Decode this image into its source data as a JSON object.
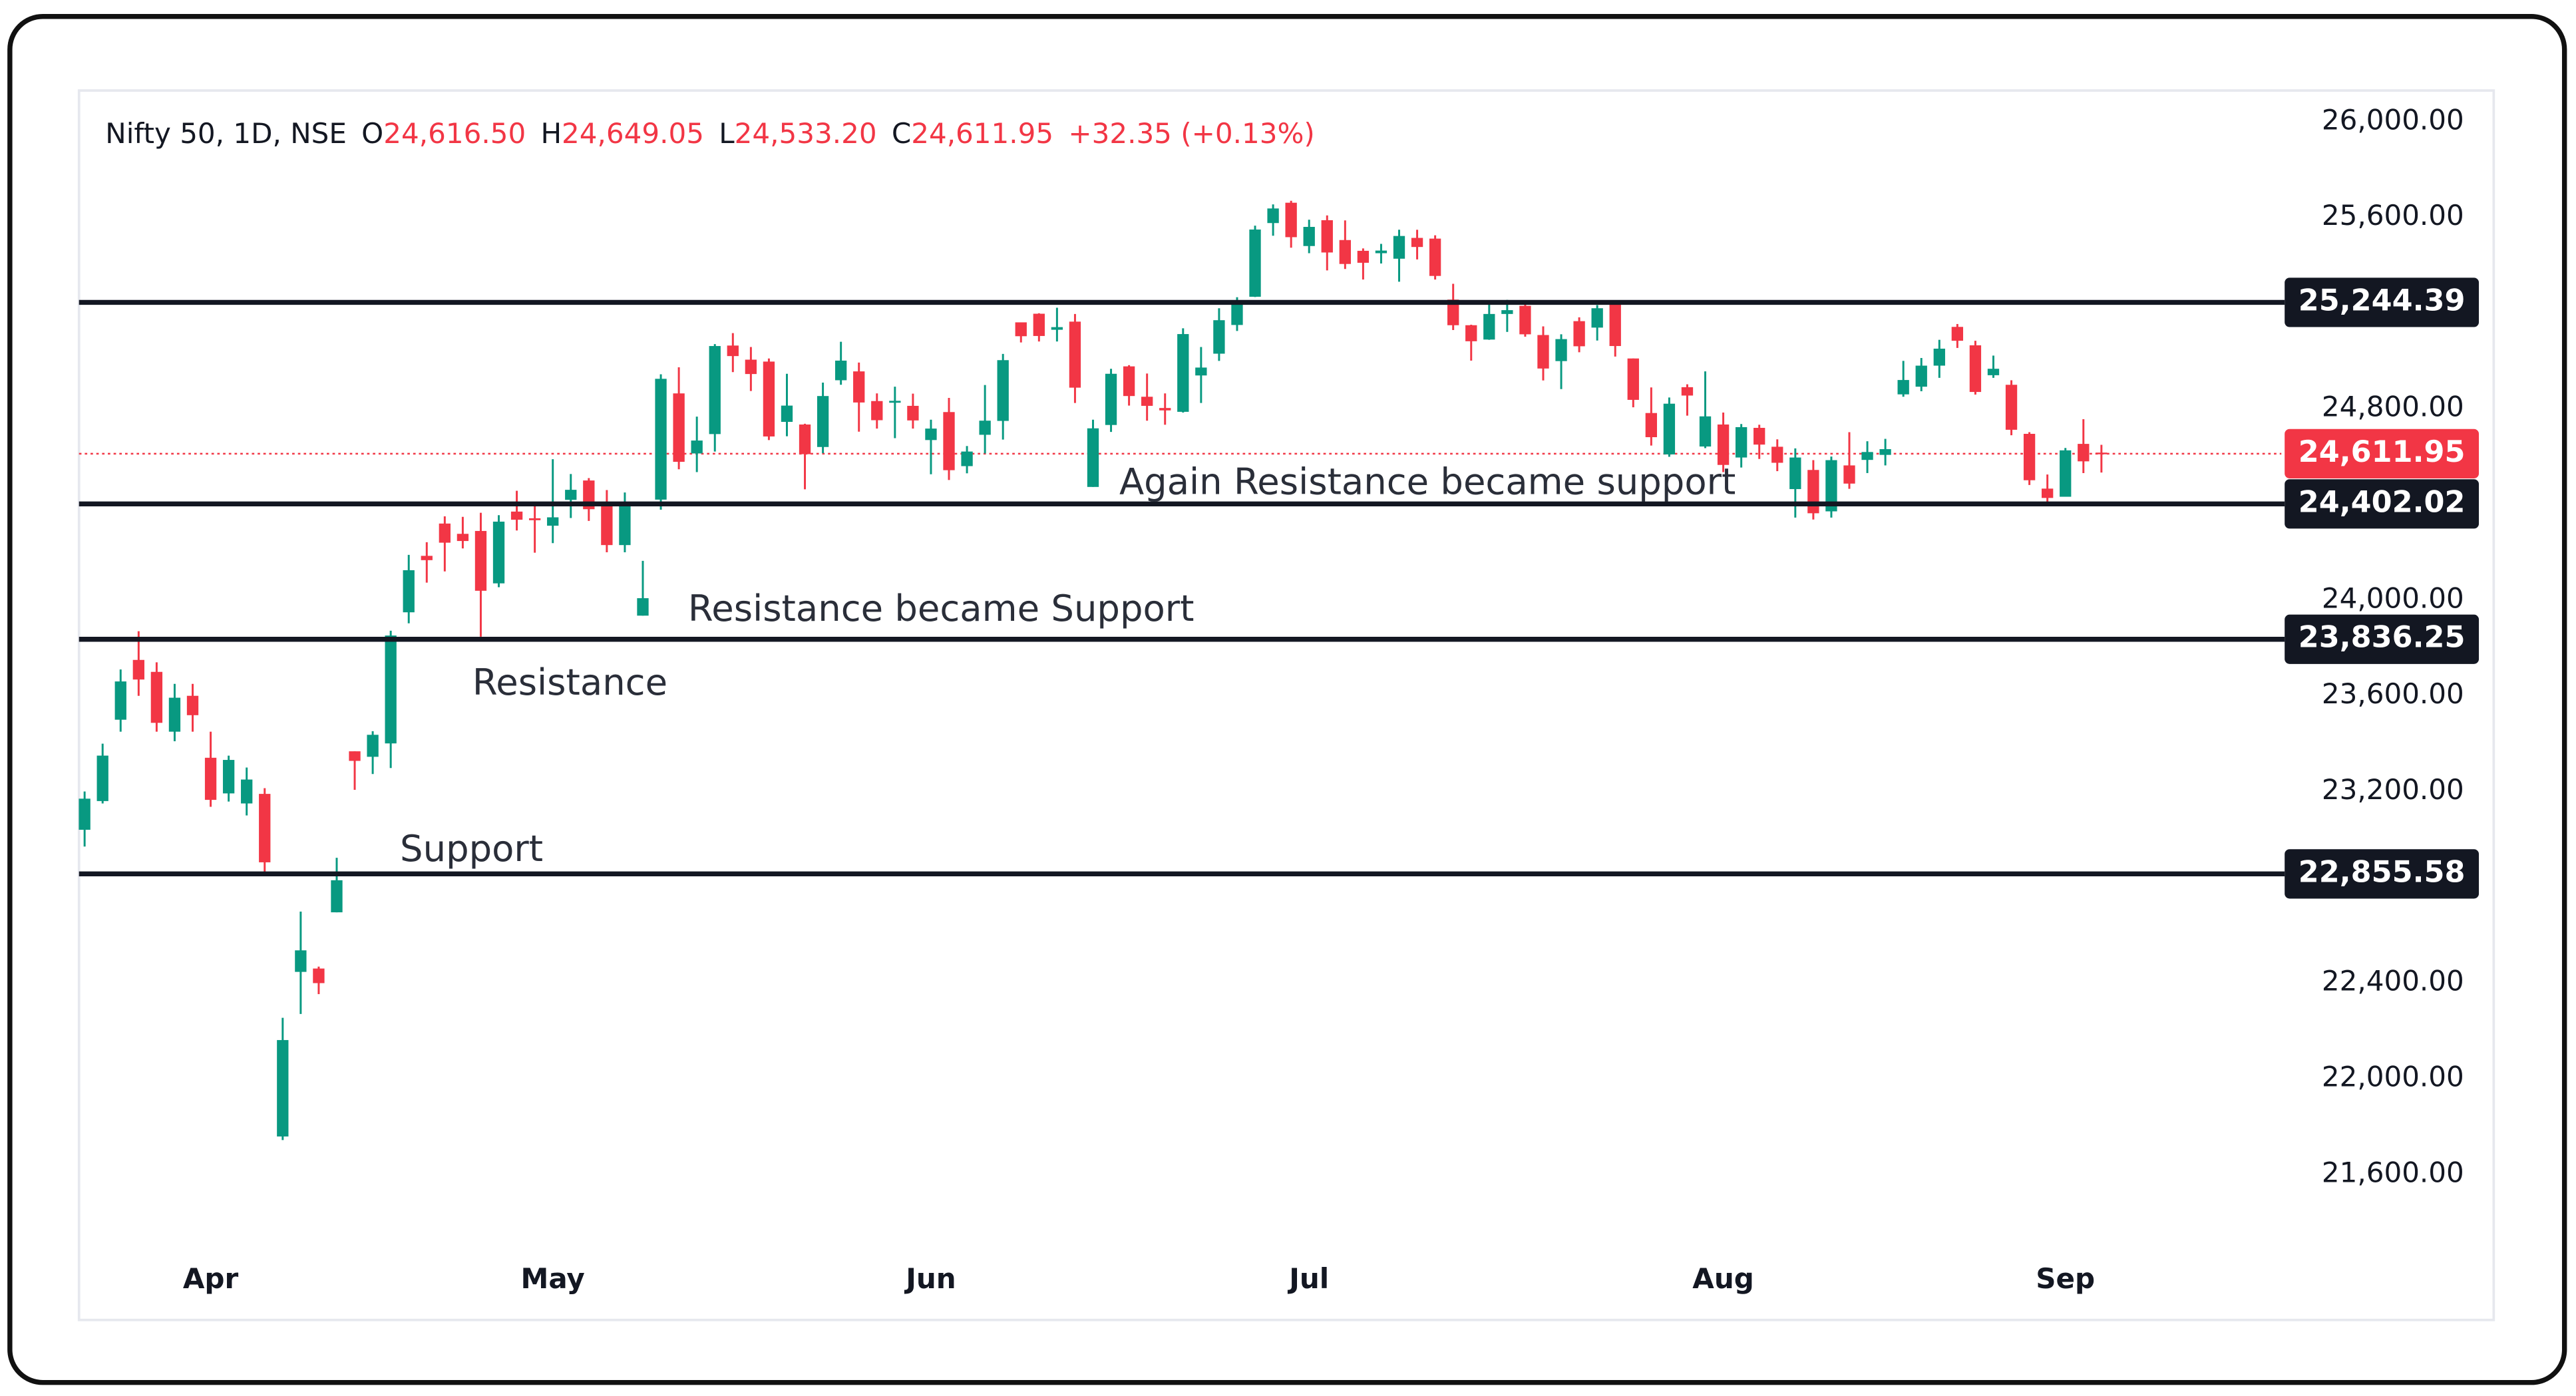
{
  "chart_data": {
    "type": "candlestick",
    "header": {
      "symbol": "Nifty 50, 1D, NSE",
      "items": [
        {
          "key": "O",
          "value": 24616.5,
          "label": "24,616.50"
        },
        {
          "key": "H",
          "value": 24649.05,
          "label": "24,649.05"
        },
        {
          "key": "L",
          "value": 24533.2,
          "label": "24,533.20"
        },
        {
          "key": "C",
          "value": 24611.95,
          "label": "24,611.95"
        }
      ],
      "change": "+32.35 (+0.13%)"
    },
    "categories": [
      null,
      null,
      null,
      null,
      null,
      null,
      null,
      "Apr",
      null,
      null,
      null,
      null,
      null,
      null,
      null,
      null,
      null,
      null,
      null,
      null,
      null,
      null,
      null,
      null,
      null,
      null,
      "May",
      null,
      null,
      null,
      null,
      null,
      null,
      null,
      null,
      null,
      null,
      null,
      null,
      null,
      null,
      null,
      null,
      null,
      null,
      null,
      null,
      "Jun",
      null,
      null,
      null,
      null,
      null,
      null,
      null,
      null,
      null,
      null,
      null,
      null,
      null,
      null,
      null,
      null,
      null,
      null,
      null,
      null,
      "Jul",
      null,
      null,
      null,
      null,
      null,
      null,
      null,
      null,
      null,
      null,
      null,
      null,
      null,
      null,
      null,
      null,
      null,
      null,
      null,
      null,
      null,
      null,
      "Aug",
      null,
      null,
      null,
      null,
      null,
      null,
      null,
      null,
      null,
      null,
      null,
      null,
      null,
      null,
      null,
      null,
      null,
      null,
      "Sep",
      null,
      null
    ],
    "open": [
      23040,
      23160,
      23500,
      23750,
      23700,
      23450,
      23600,
      23341,
      23192,
      23150,
      23190,
      21758,
      22446,
      22460,
      22695,
      23368,
      23345,
      23401,
      23949,
      24185,
      24320,
      24277,
      24289,
      24070,
      24370,
      24342,
      24311,
      24419,
      24500,
      24400,
      24230,
      23935,
      24420,
      24864,
      24613,
      24694,
      25064,
      25005,
      24997,
      24745,
      24734,
      24640,
      24919,
      24956,
      24832,
      24825,
      24812,
      24669,
      24786,
      24560,
      24691,
      24749,
      25161,
      25197,
      25130,
      25164,
      24473,
      24732,
      24977,
      24850,
      24803,
      24787,
      24939,
      25030,
      25150,
      25268,
      25576,
      25661,
      25480,
      25588,
      25505,
      25460,
      25450,
      25427,
      25514,
      25511,
      25256,
      25149,
      25089,
      25196,
      25230,
      25108,
      24999,
      25166,
      25139,
      25243,
      25010,
      24782,
      24609,
      24890,
      24642,
      24734,
      24596,
      24720,
      24641,
      24464,
      24544,
      24371,
      24563,
      24586,
      24607,
      24860,
      24892,
      24980,
      25142,
      25065,
      24940,
      24900,
      24695,
      24466,
      24432,
      24653,
      24616.5
    ],
    "high": [
      23200,
      23400,
      23710,
      23870,
      23740,
      23650,
      23650,
      23450,
      23350,
      23300,
      23214,
      22254,
      22698,
      22468,
      22923,
      23368,
      23452,
      23872,
      24189,
      24242,
      24350,
      24348,
      24365,
      24355,
      24457,
      24396,
      24589,
      24527,
      24510,
      24460,
      24450,
      24164,
      24944,
      24973,
      24767,
      25070,
      25116,
      25058,
      25010,
      24946,
      24737,
      24909,
      25080,
      24993,
      24864,
      24892,
      24863,
      24754,
      24845,
      24644,
      24899,
      25029,
      25160,
      25199,
      25222,
      25196,
      24754,
      24967,
      24982,
      24947,
      24864,
      25136,
      25058,
      25220,
      25266,
      25565,
      25654,
      25669,
      25590,
      25608,
      25587,
      25470,
      25489,
      25548,
      25548,
      25525,
      25322,
      25151,
      25245,
      25255,
      25238,
      25144,
      25111,
      25182,
      25233,
      25246,
      25010,
      24889,
      24847,
      24902,
      24956,
      24784,
      24736,
      24733,
      24672,
      24634,
      24585,
      24600,
      24702,
      24664,
      24674,
      25000,
      25012,
      25088,
      25154,
      25084,
      25022,
      24919,
      24702,
      24525,
      24636,
      24756,
      24649.05
    ],
    "low": [
      22970,
      23150,
      23450,
      23600,
      23450,
      23410,
      23450,
      23136,
      23158,
      23100,
      22857,
      21743,
      22270,
      22353,
      22695,
      23207,
      23273,
      23298,
      23903,
      24073,
      24120,
      24216,
      23847,
      24054,
      24291,
      24198,
      24238,
      24343,
      24331,
      24200,
      24200,
      23935,
      24378,
      24547,
      24535,
      24621,
      24953,
      24874,
      24669,
      24685,
      24463,
      24614,
      24900,
      24704,
      24717,
      24677,
      24717,
      24526,
      24502,
      24530,
      24613,
      24671,
      25077,
      25081,
      25081,
      24824,
      24473,
      24703,
      24813,
      24750,
      24733,
      24784,
      24824,
      25000,
      25125,
      25267,
      25523,
      25473,
      25450,
      25378,
      25384,
      25340,
      25407,
      25331,
      25424,
      25340,
      25129,
      25001,
      25088,
      25121,
      25101,
      24918,
      24882,
      25036,
      25085,
      25018,
      24806,
      24646,
      24599,
      24771,
      24635,
      24535,
      24554,
      24590,
      24539,
      24345,
      24337,
      24345,
      24465,
      24531,
      24563,
      24850,
      24873,
      24929,
      25054,
      24859,
      24929,
      24689,
      24481,
      24404,
      24432,
      24531,
      24533.2
    ],
    "close": [
      23170,
      23350,
      23660,
      23668,
      23487,
      23592,
      23519,
      23165,
      23332,
      23250,
      22904,
      22161,
      22536,
      22399,
      22829,
      23328,
      23437,
      23852,
      24125,
      24167,
      24240,
      24247,
      24039,
      24328,
      24336,
      24334,
      24346,
      24461,
      24380,
      24230,
      24410,
      24008,
      24925,
      24578,
      24667,
      25062,
      25020,
      24945,
      24684,
      24813,
      24610,
      24853,
      25001,
      24826,
      24752,
      24833,
      24751,
      24717,
      24543,
      24621,
      24750,
      25003,
      25103,
      25104,
      25141,
      24888,
      24718,
      24946,
      24853,
      24812,
      24793,
      25112,
      24972,
      25170,
      25245,
      25549,
      25637,
      25517,
      25560,
      25453,
      25405,
      25410,
      25461,
      25522,
      25476,
      25355,
      25149,
      25082,
      25196,
      25212,
      25111,
      24968,
      25091,
      25061,
      25220,
      25062,
      24837,
      24681,
      24821,
      24855,
      24768,
      24565,
      24723,
      24650,
      24574,
      24596,
      24363,
      24585,
      24487,
      24619,
      24631,
      24920,
      24980,
      25051,
      25084,
      24870,
      24967,
      24712,
      24501,
      24427,
      24626,
      24580,
      24611.95
    ],
    "up_color": "#089981",
    "down_color": "#f23645",
    "ylim": [
      21280,
      26130
    ],
    "yticks": [
      {
        "value": 21600,
        "label": "21,600.00"
      },
      {
        "value": 22000,
        "label": "22,000.00"
      },
      {
        "value": 22400,
        "label": "22,400.00"
      },
      {
        "value": 23200,
        "label": "23,200.00"
      },
      {
        "value": 23600,
        "label": "23,600.00"
      },
      {
        "value": 24000,
        "label": "24,000.00"
      },
      {
        "value": 24800,
        "label": "24,800.00"
      },
      {
        "value": 25600,
        "label": "25,600.00"
      },
      {
        "value": 26000,
        "label": "26,000.00"
      }
    ],
    "levels": [
      {
        "value": 25244.39,
        "label": "25,244.39"
      },
      {
        "value": 24402.02,
        "label": "24,402.02"
      },
      {
        "value": 23836.25,
        "label": "23,836.25"
      },
      {
        "value": 22855.58,
        "label": "22,855.58"
      }
    ],
    "level_color": "#131722",
    "last_price": {
      "value": 24611.95,
      "label": "24,611.95"
    },
    "annotations": [
      "Again Resistance became support",
      "Resistance became Support",
      "Resistance",
      "Support"
    ]
  }
}
